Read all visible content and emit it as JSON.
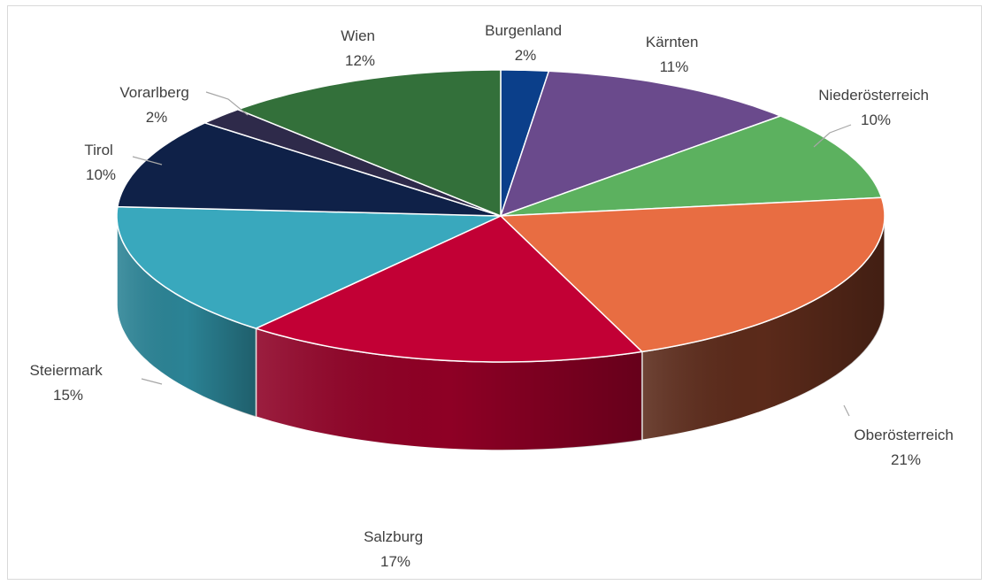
{
  "chart_data": {
    "type": "pie",
    "title": "",
    "labels": [
      "Burgenland",
      "Kärnten",
      "Niederösterreich",
      "Oberösterreich",
      "Salzburg",
      "Steiermark",
      "Tirol",
      "Vorarlberg",
      "Wien"
    ],
    "values": [
      2,
      11,
      10,
      21,
      17,
      15,
      10,
      2,
      12
    ],
    "value_labels": [
      "2%",
      "11%",
      "10%",
      "21%",
      "17%",
      "15%",
      "10%",
      "2%",
      "12%"
    ],
    "colors": [
      "#0b3f8a",
      "#6a4a8c",
      "#5cb15f",
      "#e86d42",
      "#c20035",
      "#39a8bd",
      "#0f2148",
      "#2e2a4a",
      "#33703a"
    ],
    "side_colors": [
      "#072a5c",
      "#47305e",
      "#3b7a3e",
      "#5b2a1a",
      "#8e0025",
      "#2b8395",
      "#08132c",
      "#1d1a30",
      "#214d26"
    ],
    "legend": "none",
    "style": "3d"
  }
}
